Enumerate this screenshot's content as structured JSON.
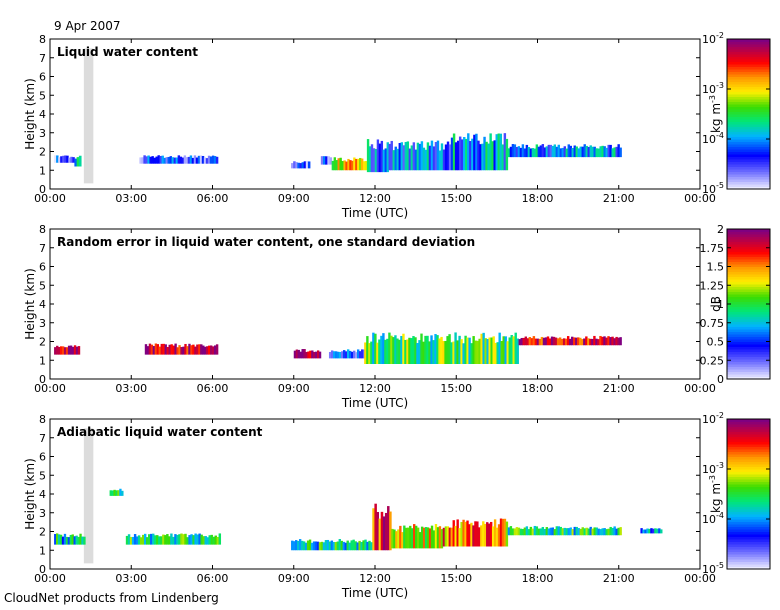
{
  "header": {
    "date": "9 Apr 2007"
  },
  "footer": {
    "credit": "CloudNet products from Lindenberg"
  },
  "chart_data": [
    {
      "type": "heatmap",
      "title": "Liquid water content",
      "xlabel": "Time (UTC)",
      "ylabel": "Height (km)",
      "x_ticks": [
        "00:00",
        "03:00",
        "06:00",
        "09:00",
        "12:00",
        "15:00",
        "18:00",
        "21:00",
        "00:00"
      ],
      "y_ticks": [
        "0",
        "1",
        "2",
        "3",
        "4",
        "5",
        "6",
        "7",
        "8"
      ],
      "xlim": [
        0,
        24
      ],
      "ylim": [
        0,
        8
      ],
      "scale": "log",
      "colorbar": {
        "unit": "kg m-3",
        "ticks": [
          "10-5",
          "10-4",
          "10-3",
          "10-2"
        ],
        "range": [
          1e-05,
          0.01
        ]
      },
      "gray_bars": [
        {
          "x0": 1.25,
          "x1": 1.6,
          "y0": 0.3,
          "y1": 7.5
        }
      ],
      "regions": [
        {
          "x0": 0.15,
          "x1": 0.9,
          "y0": 1.4,
          "y1": 1.8,
          "v": 0.18
        },
        {
          "x0": 0.9,
          "x1": 1.15,
          "y0": 1.2,
          "y1": 1.8,
          "v": 0.4
        },
        {
          "x0": 3.3,
          "x1": 6.2,
          "y0": 1.35,
          "y1": 1.8,
          "v": 0.2
        },
        {
          "x0": 8.9,
          "x1": 9.6,
          "y0": 1.1,
          "y1": 1.5,
          "v": 0.15
        },
        {
          "x0": 10.0,
          "x1": 10.4,
          "y0": 1.3,
          "y1": 1.8,
          "v": 0.2
        },
        {
          "x0": 10.4,
          "x1": 11.7,
          "y0": 1.0,
          "y1": 1.7,
          "v": 0.65
        },
        {
          "x0": 11.7,
          "x1": 12.5,
          "y0": 0.9,
          "y1": 2.7,
          "v": 0.3
        },
        {
          "x0": 12.5,
          "x1": 14.8,
          "y0": 1.0,
          "y1": 2.6,
          "v": 0.28
        },
        {
          "x0": 14.8,
          "x1": 16.9,
          "y0": 1.0,
          "y1": 3.0,
          "v": 0.32
        },
        {
          "x0": 16.9,
          "x1": 21.1,
          "y0": 1.7,
          "y1": 2.4,
          "v": 0.3
        }
      ]
    },
    {
      "type": "heatmap",
      "title": "Random error in liquid water content, one standard deviation",
      "xlabel": "Time (UTC)",
      "ylabel": "Height (km)",
      "x_ticks": [
        "00:00",
        "03:00",
        "06:00",
        "09:00",
        "12:00",
        "15:00",
        "18:00",
        "21:00",
        "00:00"
      ],
      "y_ticks": [
        "0",
        "1",
        "2",
        "3",
        "4",
        "5",
        "6",
        "7",
        "8"
      ],
      "xlim": [
        0,
        24
      ],
      "ylim": [
        0,
        8
      ],
      "scale": "linear",
      "colorbar": {
        "unit": "dB",
        "ticks": [
          "0",
          "0.25",
          "0.5",
          "0.75",
          "1",
          "1.25",
          "1.5",
          "1.75",
          "2"
        ],
        "range": [
          0,
          2
        ]
      },
      "gray_bars": [],
      "regions": [
        {
          "x0": 0.15,
          "x1": 1.1,
          "y0": 1.3,
          "y1": 1.9,
          "v": 0.95
        },
        {
          "x0": 3.5,
          "x1": 6.2,
          "y0": 1.3,
          "y1": 1.9,
          "v": 0.95
        },
        {
          "x0": 9.0,
          "x1": 10.0,
          "y0": 1.1,
          "y1": 1.6,
          "v": 0.95
        },
        {
          "x0": 10.3,
          "x1": 12.0,
          "y0": 1.1,
          "y1": 1.6,
          "v": 0.2
        },
        {
          "x0": 11.6,
          "x1": 17.3,
          "y0": 0.8,
          "y1": 2.5,
          "v": 0.5
        },
        {
          "x0": 17.3,
          "x1": 21.1,
          "y0": 1.8,
          "y1": 2.3,
          "v": 0.92
        }
      ]
    },
    {
      "type": "heatmap",
      "title": "Adiabatic liquid water content",
      "xlabel": "Time (UTC)",
      "ylabel": "Height (km)",
      "x_ticks": [
        "00:00",
        "03:00",
        "06:00",
        "09:00",
        "12:00",
        "15:00",
        "18:00",
        "21:00",
        "00:00"
      ],
      "y_ticks": [
        "0",
        "1",
        "2",
        "3",
        "4",
        "5",
        "6",
        "7",
        "8"
      ],
      "xlim": [
        0,
        24
      ],
      "ylim": [
        0,
        8
      ],
      "scale": "log",
      "colorbar": {
        "unit": "kg m-3",
        "ticks": [
          "10-5",
          "10-4",
          "10-3",
          "10-2"
        ],
        "range": [
          1e-05,
          0.01
        ]
      },
      "gray_bars": [
        {
          "x0": 1.25,
          "x1": 1.6,
          "y0": 0.3,
          "y1": 7.5
        }
      ],
      "regions": [
        {
          "x0": 0.15,
          "x1": 1.3,
          "y0": 1.3,
          "y1": 1.9,
          "v": 0.4
        },
        {
          "x0": 2.2,
          "x1": 2.7,
          "y0": 3.9,
          "y1": 4.3,
          "v": 0.45
        },
        {
          "x0": 2.8,
          "x1": 6.3,
          "y0": 1.3,
          "y1": 1.9,
          "v": 0.45
        },
        {
          "x0": 8.9,
          "x1": 11.9,
          "y0": 1.0,
          "y1": 1.6,
          "v": 0.42
        },
        {
          "x0": 11.9,
          "x1": 12.6,
          "y0": 1.0,
          "y1": 3.5,
          "v": 0.85
        },
        {
          "x0": 12.6,
          "x1": 14.5,
          "y0": 1.1,
          "y1": 2.4,
          "v": 0.65
        },
        {
          "x0": 14.5,
          "x1": 16.9,
          "y0": 1.2,
          "y1": 2.7,
          "v": 0.75
        },
        {
          "x0": 16.9,
          "x1": 21.1,
          "y0": 1.8,
          "y1": 2.3,
          "v": 0.45
        },
        {
          "x0": 21.8,
          "x1": 22.6,
          "y0": 1.9,
          "y1": 2.2,
          "v": 0.3
        }
      ]
    }
  ]
}
